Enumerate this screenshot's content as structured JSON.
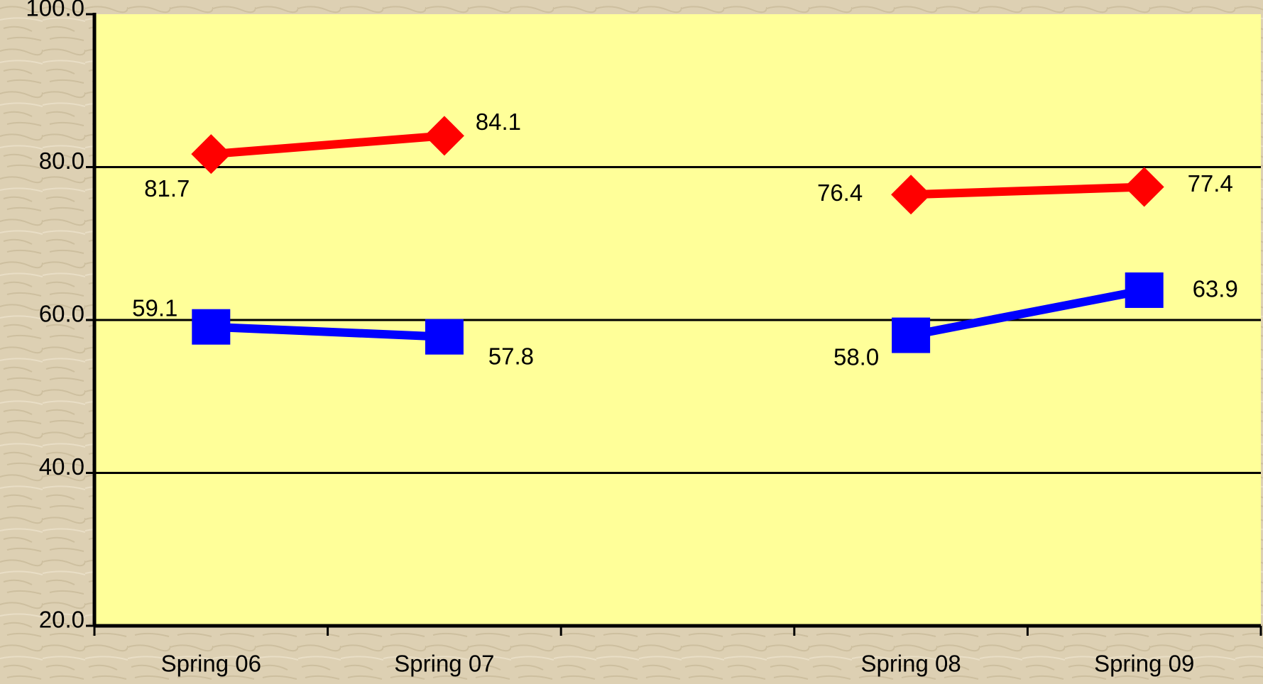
{
  "chart_data": {
    "type": "line",
    "categories": [
      "Spring 06",
      "Spring 07",
      null,
      "Spring 08",
      "Spring 09"
    ],
    "series": [
      {
        "color": "#ff0000",
        "marker": "diamond",
        "values": [
          81.7,
          84.1,
          null,
          76.4,
          77.4
        ],
        "value_labels": [
          "81.7",
          "84.1",
          null,
          "76.4",
          "77.4"
        ]
      },
      {
        "color": "#0000ff",
        "marker": "square",
        "values": [
          59.1,
          57.8,
          null,
          58.0,
          63.9
        ],
        "value_labels": [
          "59.1",
          "57.8",
          null,
          "58.0",
          "63.9"
        ]
      }
    ],
    "ylim": [
      20,
      100
    ],
    "yticks": [
      {
        "value": 20,
        "label": "20.0"
      },
      {
        "value": 40,
        "label": "40.0"
      },
      {
        "value": 60,
        "label": "60.0"
      },
      {
        "value": 80,
        "label": "80.0"
      },
      {
        "value": 100,
        "label": "100.0"
      }
    ],
    "grid": true,
    "plot_background": "#ffff99"
  }
}
